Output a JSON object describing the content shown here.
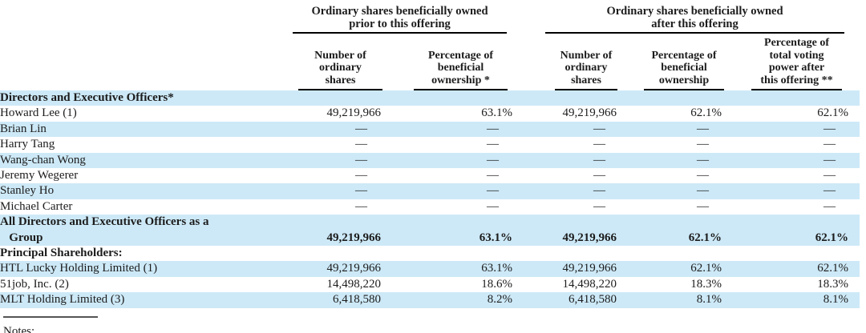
{
  "table": {
    "col_groups": [
      {
        "title": "Ordinary shares beneficially owned\nprior to this offering"
      },
      {
        "title": "Ordinary shares beneficially owned\nafter this offering"
      }
    ],
    "columns": [
      "Number of\nordinary\nshares",
      "Percentage of\nbeneficial\nownership *",
      "Number of\nordinary\nshares",
      "Percentage of\nbeneficial\nownership",
      "Percentage of\ntotal voting\npower after\nthis offering **"
    ],
    "rows": [
      {
        "name": "Directors and Executive Officers*",
        "type": "section",
        "values": [
          "",
          "",
          "",
          "",
          ""
        ]
      },
      {
        "name": "Howard Lee (1)",
        "values": [
          "49,219,966",
          "63.1%",
          "49,219,966",
          "62.1%",
          "62.1%"
        ]
      },
      {
        "name": "Brian Lin",
        "values": [
          "—",
          "—",
          "—",
          "—",
          "—"
        ]
      },
      {
        "name": "Harry Tang",
        "values": [
          "—",
          "—",
          "—",
          "—",
          "—"
        ]
      },
      {
        "name": "Wang-chan Wong",
        "values": [
          "—",
          "—",
          "—",
          "—",
          "—"
        ]
      },
      {
        "name": "Jeremy Wegerer",
        "values": [
          "—",
          "—",
          "—",
          "—",
          "—"
        ]
      },
      {
        "name": "Stanley Ho",
        "values": [
          "—",
          "—",
          "—",
          "—",
          "—"
        ]
      },
      {
        "name": "Michael Carter",
        "values": [
          "—",
          "—",
          "—",
          "—",
          "—"
        ]
      },
      {
        "name": "All Directors and Executive Officers as a\n   Group",
        "type": "total",
        "values": [
          "49,219,966",
          "63.1%",
          "49,219,966",
          "62.1%",
          "62.1%"
        ]
      },
      {
        "name": "Principal Shareholders:",
        "type": "section",
        "values": [
          "",
          "",
          "",
          "",
          ""
        ]
      },
      {
        "name": "HTL Lucky Holding Limited (1)",
        "values": [
          "49,219,966",
          "63.1%",
          "49,219,966",
          "62.1%",
          "62.1%"
        ]
      },
      {
        "name": "51job, Inc. (2)",
        "values": [
          "14,498,220",
          "18.6%",
          "14,498,220",
          "18.3%",
          "18.3%"
        ]
      },
      {
        "name": "MLT Holding Limited (3)",
        "values": [
          "6,418,580",
          "8.2%",
          "6,418,580",
          "8.1%",
          "8.1%"
        ]
      }
    ],
    "footnote_label": "Notes:"
  },
  "colors": {
    "stripe_blue": "#cde9f7",
    "text": "#1c1c1c",
    "rule_black": "#000000"
  }
}
